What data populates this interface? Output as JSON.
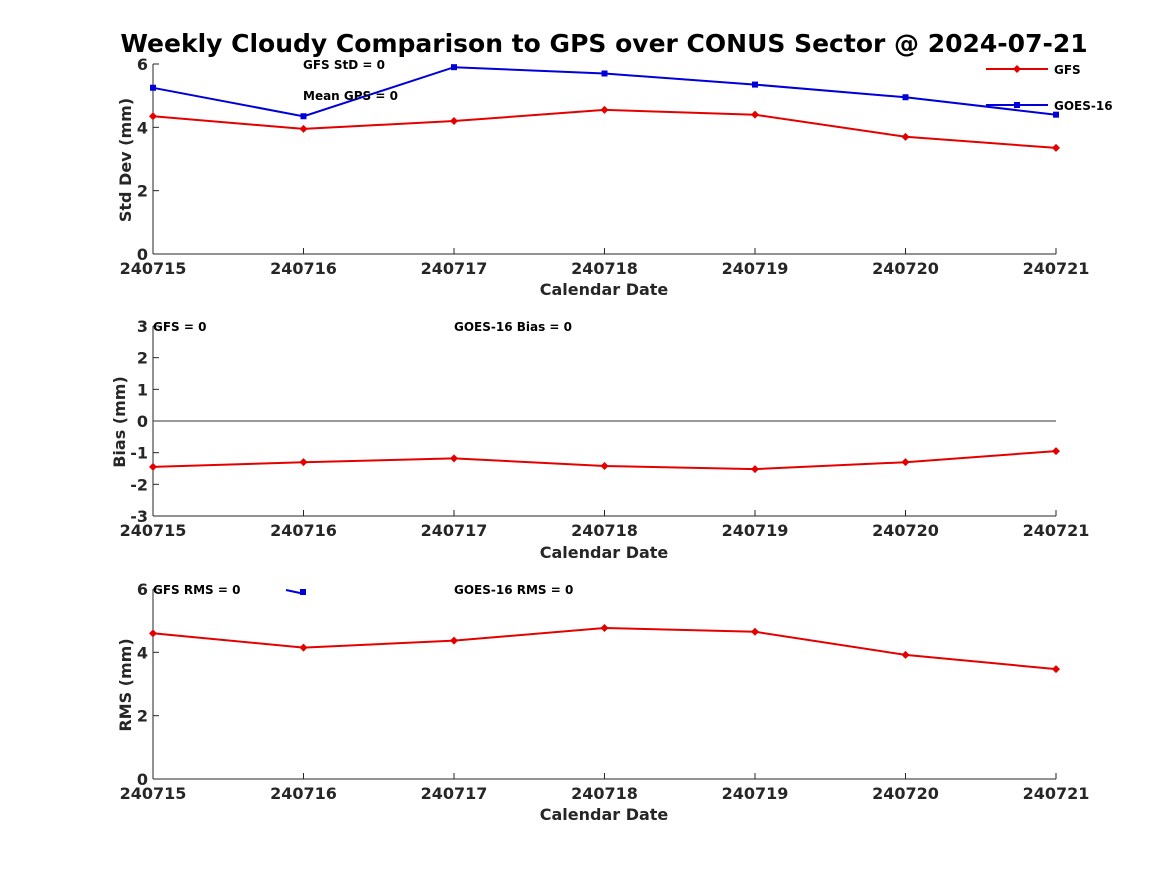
{
  "figure": {
    "title": "Weekly Cloudy Comparison to GPS over CONUS Sector @ 2024-07-21"
  },
  "colors": {
    "gfs": "#e50000",
    "goes16": "#0000d9",
    "zero_line": "#333333",
    "axis": "#262626"
  },
  "chart_data": [
    {
      "type": "line",
      "id": "std",
      "ylabel": "Std Dev (mm)",
      "xlabel": "Calendar Date",
      "categories": [
        "240715",
        "240716",
        "240717",
        "240718",
        "240719",
        "240720",
        "240721"
      ],
      "ylim": [
        0,
        6
      ],
      "yticks": [
        0,
        2,
        4,
        6
      ],
      "grid": false,
      "legend": {
        "placement": "top-right",
        "entries": [
          "GFS",
          "GOES-16"
        ]
      },
      "annotations": [
        "GFS StD = 0",
        "Mean GPS = 0"
      ],
      "series": [
        {
          "name": "GFS",
          "color_key": "gfs",
          "marker": "diamond",
          "values": [
            4.35,
            3.95,
            4.2,
            4.55,
            4.4,
            3.7,
            3.35
          ]
        },
        {
          "name": "GOES-16",
          "color_key": "goes16",
          "marker": "square",
          "values": [
            5.25,
            4.35,
            5.9,
            5.7,
            5.35,
            4.95,
            4.4
          ]
        }
      ]
    },
    {
      "type": "line",
      "id": "bias",
      "ylabel": "Bias (mm)",
      "xlabel": "Calendar Date",
      "categories": [
        "240715",
        "240716",
        "240717",
        "240718",
        "240719",
        "240720",
        "240721"
      ],
      "ylim": [
        -3,
        3
      ],
      "yticks": [
        -3,
        -2,
        -1,
        0,
        1,
        2,
        3
      ],
      "grid": false,
      "zero_line": true,
      "annotations": [
        "GFS = 0",
        "GOES-16 Bias  = 0"
      ],
      "series": [
        {
          "name": "GFS",
          "color_key": "gfs",
          "marker": "diamond",
          "values": [
            -1.45,
            -1.3,
            -1.18,
            -1.42,
            -1.52,
            -1.3,
            -0.95
          ]
        }
      ]
    },
    {
      "type": "line",
      "id": "rms",
      "ylabel": "RMS (mm)",
      "xlabel": "Calendar Date",
      "categories": [
        "240715",
        "240716",
        "240717",
        "240718",
        "240719",
        "240720",
        "240721"
      ],
      "ylim": [
        0,
        6
      ],
      "yticks": [
        0,
        2,
        4,
        6
      ],
      "grid": false,
      "annotations": [
        "GFS RMS = 0",
        "GOES-16 RMS = 0"
      ],
      "series": [
        {
          "name": "GFS",
          "color_key": "gfs",
          "marker": "diamond",
          "values": [
            4.6,
            4.15,
            4.37,
            4.77,
            4.65,
            3.92,
            3.47
          ]
        }
      ]
    }
  ]
}
